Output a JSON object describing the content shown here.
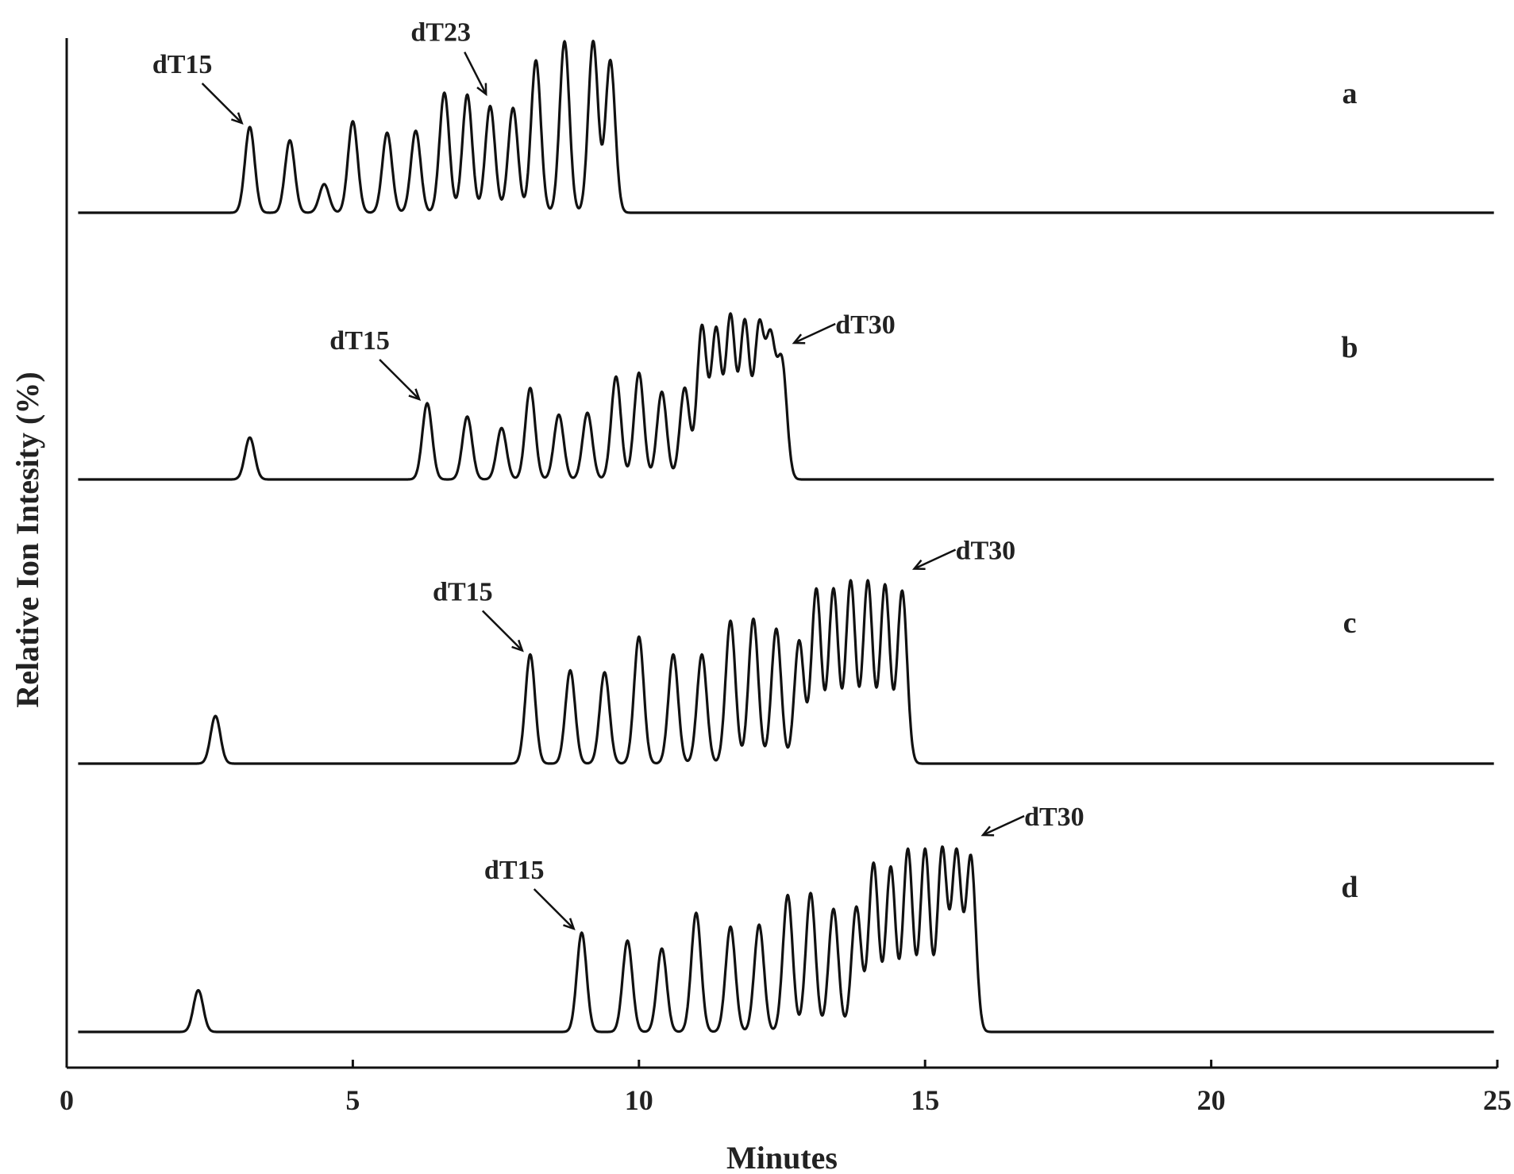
{
  "chart_data": {
    "type": "line",
    "title": "",
    "xlabel": "Minutes",
    "ylabel": "Relative Ion Intesity (%)",
    "xlim": [
      0,
      25
    ],
    "xticks": [
      "0",
      "5",
      "10",
      "15",
      "20",
      "25"
    ],
    "grid": false,
    "legend": "none",
    "series": [
      {
        "name": "a",
        "peaks": [
          {
            "x": 3.2,
            "h": 0.45
          },
          {
            "x": 3.9,
            "h": 0.38
          },
          {
            "x": 4.5,
            "h": 0.15
          },
          {
            "x": 5.0,
            "h": 0.48
          },
          {
            "x": 5.6,
            "h": 0.42
          },
          {
            "x": 6.1,
            "h": 0.43
          },
          {
            "x": 6.6,
            "h": 0.63
          },
          {
            "x": 7.0,
            "h": 0.62
          },
          {
            "x": 7.4,
            "h": 0.56
          },
          {
            "x": 7.8,
            "h": 0.55
          },
          {
            "x": 8.2,
            "h": 0.8
          },
          {
            "x": 8.7,
            "h": 0.9
          },
          {
            "x": 9.2,
            "h": 0.9
          },
          {
            "x": 9.5,
            "h": 0.8
          }
        ],
        "annotations": [
          {
            "text": "dT15",
            "x": 3.2
          },
          {
            "text": "dT23",
            "x": 7.3
          }
        ]
      },
      {
        "name": "b",
        "peaks": [
          {
            "x": 3.2,
            "h": 0.22
          },
          {
            "x": 6.3,
            "h": 0.4
          },
          {
            "x": 7.0,
            "h": 0.33
          },
          {
            "x": 7.6,
            "h": 0.27
          },
          {
            "x": 8.1,
            "h": 0.48
          },
          {
            "x": 8.6,
            "h": 0.34
          },
          {
            "x": 9.1,
            "h": 0.35
          },
          {
            "x": 9.6,
            "h": 0.54
          },
          {
            "x": 10.0,
            "h": 0.56
          },
          {
            "x": 10.4,
            "h": 0.46
          },
          {
            "x": 10.8,
            "h": 0.48
          },
          {
            "x": 11.1,
            "h": 0.8
          },
          {
            "x": 11.35,
            "h": 0.78
          },
          {
            "x": 11.6,
            "h": 0.85
          },
          {
            "x": 11.85,
            "h": 0.82
          },
          {
            "x": 12.1,
            "h": 0.78
          },
          {
            "x": 12.3,
            "h": 0.7
          },
          {
            "x": 12.5,
            "h": 0.6
          }
        ],
        "annotations": [
          {
            "text": "dT15",
            "x": 6.3
          },
          {
            "text": "dT30",
            "x": 12.6
          }
        ]
      },
      {
        "name": "c",
        "peaks": [
          {
            "x": 2.6,
            "h": 0.24
          },
          {
            "x": 8.1,
            "h": 0.55
          },
          {
            "x": 8.8,
            "h": 0.47
          },
          {
            "x": 9.4,
            "h": 0.46
          },
          {
            "x": 10.0,
            "h": 0.64
          },
          {
            "x": 10.6,
            "h": 0.55
          },
          {
            "x": 11.1,
            "h": 0.55
          },
          {
            "x": 11.6,
            "h": 0.72
          },
          {
            "x": 12.0,
            "h": 0.73
          },
          {
            "x": 12.4,
            "h": 0.68
          },
          {
            "x": 12.8,
            "h": 0.62
          },
          {
            "x": 13.1,
            "h": 0.88
          },
          {
            "x": 13.4,
            "h": 0.88
          },
          {
            "x": 13.7,
            "h": 0.92
          },
          {
            "x": 14.0,
            "h": 0.92
          },
          {
            "x": 14.3,
            "h": 0.9
          },
          {
            "x": 14.6,
            "h": 0.87
          }
        ],
        "annotations": [
          {
            "text": "dT15",
            "x": 8.1
          },
          {
            "text": "dT30",
            "x": 14.7
          }
        ]
      },
      {
        "name": "d",
        "peaks": [
          {
            "x": 2.3,
            "h": 0.21
          },
          {
            "x": 9.0,
            "h": 0.5
          },
          {
            "x": 9.8,
            "h": 0.46
          },
          {
            "x": 10.4,
            "h": 0.42
          },
          {
            "x": 11.0,
            "h": 0.6
          },
          {
            "x": 11.6,
            "h": 0.53
          },
          {
            "x": 12.1,
            "h": 0.54
          },
          {
            "x": 12.6,
            "h": 0.69
          },
          {
            "x": 13.0,
            "h": 0.7
          },
          {
            "x": 13.4,
            "h": 0.62
          },
          {
            "x": 13.8,
            "h": 0.63
          },
          {
            "x": 14.1,
            "h": 0.85
          },
          {
            "x": 14.4,
            "h": 0.83
          },
          {
            "x": 14.7,
            "h": 0.92
          },
          {
            "x": 15.0,
            "h": 0.92
          },
          {
            "x": 15.3,
            "h": 0.92
          },
          {
            "x": 15.55,
            "h": 0.9
          },
          {
            "x": 15.8,
            "h": 0.88
          }
        ],
        "annotations": [
          {
            "text": "dT15",
            "x": 9.0
          },
          {
            "text": "dT30",
            "x": 15.9
          }
        ]
      }
    ]
  }
}
